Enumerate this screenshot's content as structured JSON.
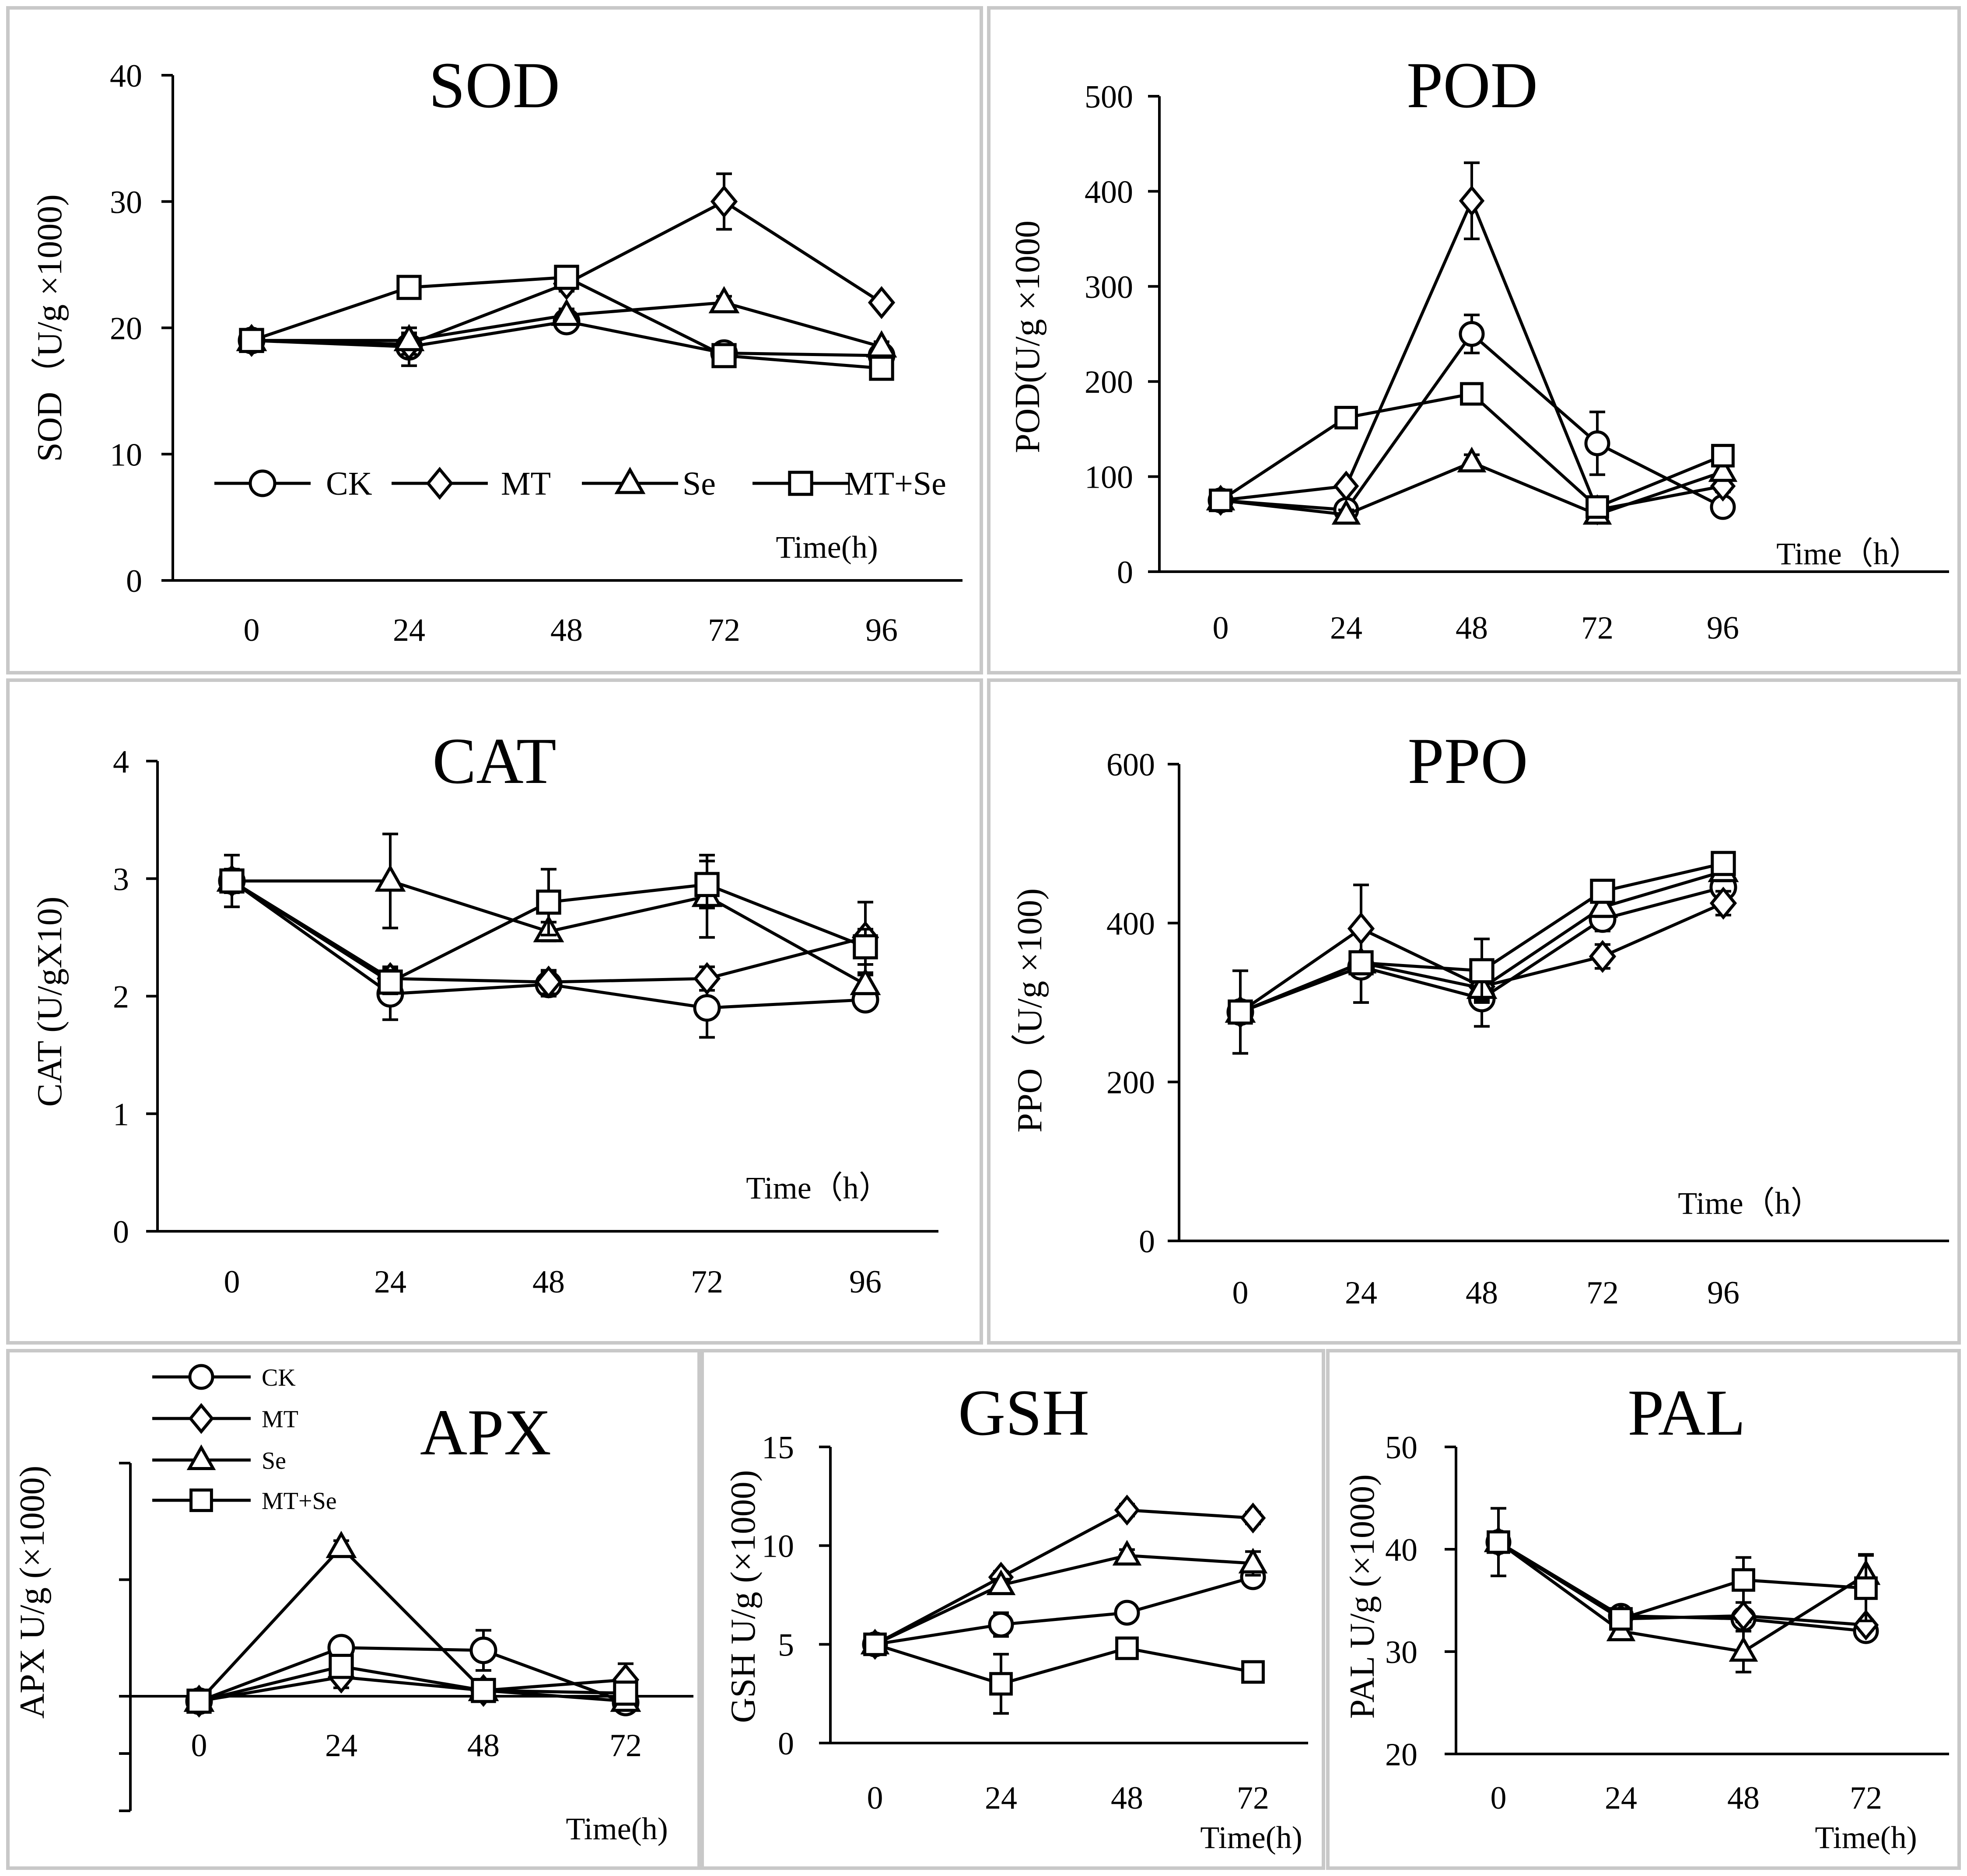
{
  "figure": {
    "legend_labels": [
      "CK",
      "MT",
      "Se",
      "MT+Se"
    ]
  },
  "chart_data": [
    {
      "id": "sod",
      "type": "line",
      "title": "SOD",
      "ylabel": "SOD（U/g ×1000)",
      "xlabel": "Time(h)",
      "categories": [
        "0",
        "24",
        "48",
        "72",
        "96"
      ],
      "ylim": [
        0,
        40
      ],
      "yticks": [
        "0",
        "10",
        "20",
        "30",
        "40"
      ],
      "series": [
        {
          "name": "CK",
          "marker": "circle",
          "values": [
            19,
            18.5,
            20.5,
            18,
            17.8
          ],
          "errors": [
            0.3,
            1.5,
            0.5,
            0.4,
            0.4
          ]
        },
        {
          "name": "MT",
          "marker": "diamond",
          "values": [
            19,
            18.7,
            23.5,
            30,
            22
          ],
          "errors": [
            0.3,
            0.8,
            0.6,
            2.2,
            0.3
          ]
        },
        {
          "name": "Se",
          "marker": "triangle",
          "values": [
            19,
            19,
            21,
            22,
            18.5
          ],
          "errors": [
            0.3,
            0.6,
            0.5,
            0.5,
            0.4
          ]
        },
        {
          "name": "MT+Se",
          "marker": "square",
          "values": [
            19,
            23.2,
            24,
            17.8,
            16.8
          ],
          "errors": [
            0.3,
            0.4,
            0.4,
            0.4,
            0.4
          ]
        }
      ]
    },
    {
      "id": "pod",
      "type": "line",
      "title": "POD",
      "ylabel": "POD(U/g ×1000",
      "xlabel": "Time（h）",
      "categories": [
        "0",
        "24",
        "48",
        "72",
        "96"
      ],
      "ylim": [
        0,
        500
      ],
      "yticks": [
        "0",
        "100",
        "200",
        "300",
        "400",
        "500"
      ],
      "series": [
        {
          "name": "CK",
          "marker": "circle",
          "values": [
            75,
            65,
            250,
            135,
            68
          ],
          "errors": [
            5,
            5,
            20,
            33,
            5
          ]
        },
        {
          "name": "MT",
          "marker": "diamond",
          "values": [
            75,
            90,
            390,
            65,
            90
          ],
          "errors": [
            5,
            5,
            40,
            5,
            6
          ]
        },
        {
          "name": "Se",
          "marker": "triangle",
          "values": [
            75,
            60,
            115,
            60,
            105
          ],
          "errors": [
            5,
            5,
            8,
            5,
            6
          ]
        },
        {
          "name": "MT+Se",
          "marker": "square",
          "values": [
            75,
            162,
            187,
            68,
            122
          ],
          "errors": [
            5,
            6,
            8,
            5,
            6
          ]
        }
      ]
    },
    {
      "id": "cat",
      "type": "line",
      "title": "CAT",
      "ylabel": "CAT (U/gX10)",
      "xlabel": "Time（h）",
      "categories": [
        "0",
        "24",
        "48",
        "72",
        "96"
      ],
      "ylim": [
        0,
        4
      ],
      "yticks": [
        "0",
        "1",
        "2",
        "3",
        "4"
      ],
      "series": [
        {
          "name": "CK",
          "marker": "circle",
          "values": [
            2.98,
            2.02,
            2.1,
            1.9,
            1.97
          ],
          "errors": [
            0.22,
            0.22,
            0.1,
            0.25,
            0.05
          ]
        },
        {
          "name": "MT",
          "marker": "diamond",
          "values": [
            2.98,
            2.15,
            2.12,
            2.15,
            2.5
          ],
          "errors": [
            0.1,
            0.1,
            0.1,
            0.1,
            0.3
          ]
        },
        {
          "name": "Se",
          "marker": "triangle",
          "values": [
            2.98,
            2.98,
            2.55,
            2.85,
            2.1
          ],
          "errors": [
            0.1,
            0.4,
            0.08,
            0.35,
            0.08
          ]
        },
        {
          "name": "MT+Se",
          "marker": "square",
          "values": [
            2.98,
            2.12,
            2.8,
            2.95,
            2.42
          ],
          "errors": [
            0.1,
            0.1,
            0.28,
            0.2,
            0.15
          ]
        }
      ]
    },
    {
      "id": "ppo",
      "type": "line",
      "title": "PPO",
      "ylabel": "PPO（U/g ×100)",
      "xlabel": "Time（h）",
      "categories": [
        "0",
        "24",
        "48",
        "72",
        "96"
      ],
      "ylim": [
        0,
        600
      ],
      "yticks": [
        "0",
        "200",
        "400",
        "600"
      ],
      "series": [
        {
          "name": "CK",
          "marker": "circle",
          "values": [
            288,
            345,
            305,
            405,
            445
          ],
          "errors": [
            52,
            45,
            35,
            15,
            12
          ]
        },
        {
          "name": "MT",
          "marker": "diamond",
          "values": [
            288,
            393,
            320,
            358,
            425
          ],
          "errors": [
            10,
            55,
            20,
            15,
            15
          ]
        },
        {
          "name": "Se",
          "marker": "triangle",
          "values": [
            288,
            350,
            318,
            420,
            465
          ],
          "errors": [
            10,
            10,
            15,
            12,
            12
          ]
        },
        {
          "name": "MT+Se",
          "marker": "square",
          "values": [
            288,
            350,
            340,
            440,
            475
          ],
          "errors": [
            10,
            10,
            40,
            12,
            12
          ]
        }
      ]
    },
    {
      "id": "apx",
      "type": "line",
      "title": "APX",
      "ylabel": "APX U/g (×1000)",
      "xlabel": "Time(h)",
      "categories": [
        "0",
        "24",
        "48",
        "72"
      ],
      "ylim": [
        -0.8,
        1.8
      ],
      "yticks": [],
      "series": [
        {
          "name": "CK",
          "marker": "circle",
          "values": [
            0.02,
            0.42,
            0.4,
            0.01
          ],
          "errors": [
            0.02,
            0.04,
            0.15,
            0.03
          ]
        },
        {
          "name": "MT",
          "marker": "diamond",
          "values": [
            0.02,
            0.2,
            0.1,
            0.18
          ],
          "errors": [
            0.02,
            0.08,
            0.03,
            0.12
          ]
        },
        {
          "name": "Se",
          "marker": "triangle",
          "values": [
            0.02,
            1.17,
            0.1,
            0.02
          ],
          "errors": [
            0.02,
            0.05,
            0.03,
            0.02
          ]
        },
        {
          "name": "MT+Se",
          "marker": "square",
          "values": [
            0.02,
            0.28,
            0.1,
            0.08
          ],
          "errors": [
            0.02,
            0.04,
            0.03,
            0.03
          ]
        }
      ]
    },
    {
      "id": "gsh",
      "type": "line",
      "title": "GSH",
      "ylabel": "GSH U/g (×1000)",
      "xlabel": "Time(h)",
      "categories": [
        "0",
        "24",
        "48",
        "72"
      ],
      "ylim": [
        0,
        15
      ],
      "yticks": [
        "0",
        "5",
        "10",
        "15"
      ],
      "series": [
        {
          "name": "CK",
          "marker": "circle",
          "values": [
            5,
            6,
            6.6,
            8.4
          ],
          "errors": [
            0.2,
            0.6,
            0.2,
            0.4
          ]
        },
        {
          "name": "MT",
          "marker": "diamond",
          "values": [
            5,
            8.4,
            11.8,
            11.4
          ],
          "errors": [
            0.2,
            0.3,
            0.3,
            0.3
          ]
        },
        {
          "name": "Se",
          "marker": "triangle",
          "values": [
            5,
            8,
            9.5,
            9.1
          ],
          "errors": [
            0.2,
            0.3,
            0.3,
            0.6
          ]
        },
        {
          "name": "MT+Se",
          "marker": "square",
          "values": [
            5,
            3,
            4.8,
            3.6
          ],
          "errors": [
            0.2,
            1.5,
            0.3,
            0.3
          ]
        }
      ]
    },
    {
      "id": "pal",
      "type": "line",
      "title": "PAL",
      "ylabel": "PAL U/g (×1000)",
      "xlabel": "Time(h)",
      "categories": [
        "0",
        "24",
        "48",
        "72"
      ],
      "ylim": [
        20,
        50
      ],
      "yticks": [
        "20",
        "30",
        "40",
        "50"
      ],
      "series": [
        {
          "name": "CK",
          "marker": "circle",
          "values": [
            40.7,
            33.5,
            33.2,
            32
          ],
          "errors": [
            3.3,
            0.6,
            0.6,
            0.5
          ]
        },
        {
          "name": "MT",
          "marker": "diamond",
          "values": [
            40.7,
            33.2,
            33.5,
            32.6
          ],
          "errors": [
            0.6,
            0.5,
            0.6,
            0.5
          ]
        },
        {
          "name": "Se",
          "marker": "triangle",
          "values": [
            40.7,
            32,
            30,
            37.5
          ],
          "errors": [
            0.6,
            0.6,
            2,
            2
          ]
        },
        {
          "name": "MT+Se",
          "marker": "square",
          "values": [
            40.7,
            33.2,
            37,
            36.2
          ],
          "errors": [
            0.6,
            0.5,
            2.2,
            3.2
          ]
        }
      ]
    }
  ]
}
